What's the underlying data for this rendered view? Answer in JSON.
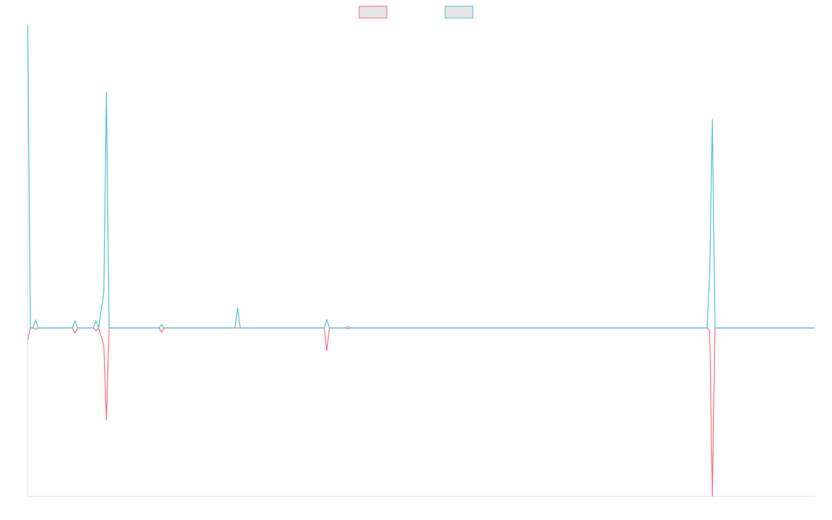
{
  "chart_data": {
    "type": "line",
    "x": [
      0,
      1,
      2,
      3,
      4,
      16,
      17,
      18,
      19,
      25,
      26,
      27,
      29,
      30,
      31,
      50,
      51,
      52,
      79,
      80,
      81,
      113,
      114,
      115,
      121,
      122,
      123,
      259,
      260,
      261,
      262,
      300
    ],
    "series": [
      {
        "color": "#ff6384",
        "values": [
          -18,
          0,
          0,
          -2,
          0,
          0,
          0,
          -7,
          0,
          0,
          -4,
          0,
          -25,
          -133,
          0,
          0,
          -6,
          0,
          0,
          0,
          0,
          0,
          -33,
          0,
          0,
          -1,
          0,
          0,
          -5,
          -243,
          0,
          0
        ]
      },
      {
        "color": "#4bc0c0",
        "values": [
          437,
          0,
          0,
          11,
          0,
          0,
          0,
          10,
          0,
          0,
          10,
          0,
          50,
          340,
          0,
          0,
          5,
          0,
          0,
          29,
          0,
          0,
          12,
          0,
          0,
          2,
          0,
          0,
          80,
          301,
          0,
          0
        ]
      }
    ],
    "xlim": [
      0,
      300
    ],
    "ylim": [
      -243,
      437
    ]
  }
}
